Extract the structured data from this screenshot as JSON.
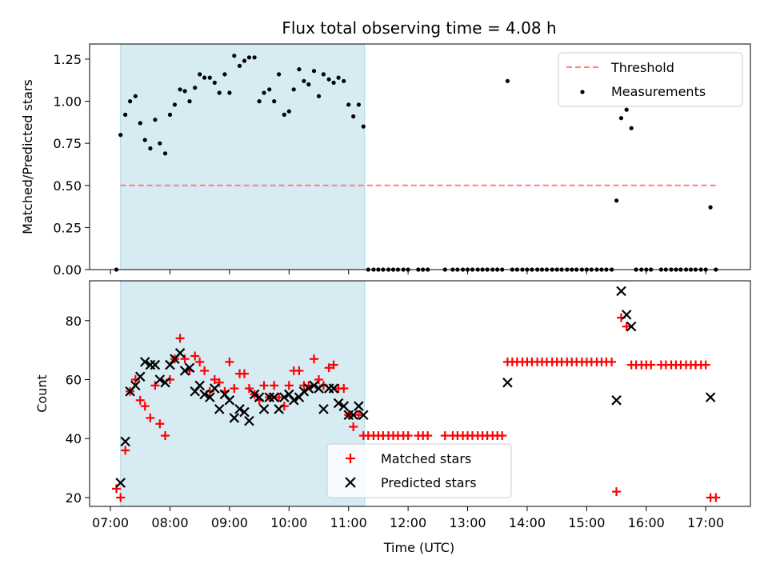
{
  "title": "Flux total observing time = 4.08 h",
  "xlabel": "Time (UTC)",
  "colors": {
    "threshold": "#ff7f7f",
    "measurement": "#000000",
    "matched": "#ff0000",
    "predicted": "#000000",
    "shade": "#add8e6"
  },
  "chart_data": [
    {
      "type": "scatter",
      "name": "ratio-panel",
      "ylabel": "Matched/Predicted stars",
      "xlim_hours": [
        6.65,
        17.75
      ],
      "ylim": [
        0,
        1.34
      ],
      "yticks": [
        0.0,
        0.25,
        0.5,
        0.75,
        1.0,
        1.25
      ],
      "ytick_labels": [
        "0.00",
        "0.25",
        "0.50",
        "0.75",
        "1.00",
        "1.25"
      ],
      "shaded_span_hours": [
        7.17,
        11.27
      ],
      "threshold": {
        "value": 0.5,
        "x_from": 7.17,
        "x_to": 17.2,
        "label": "Threshold"
      },
      "series": [
        {
          "name": "Measurements",
          "marker": "dot",
          "x": [
            7.1,
            7.17,
            7.25,
            7.33,
            7.42,
            7.5,
            7.58,
            7.67,
            7.75,
            7.83,
            7.92,
            8.0,
            8.08,
            8.17,
            8.25,
            8.33,
            8.42,
            8.5,
            8.58,
            8.67,
            8.75,
            8.83,
            8.92,
            9.0,
            9.08,
            9.17,
            9.25,
            9.33,
            9.42,
            9.5,
            9.58,
            9.67,
            9.75,
            9.83,
            9.92,
            10.0,
            10.08,
            10.17,
            10.25,
            10.33,
            10.42,
            10.5,
            10.58,
            10.67,
            10.75,
            10.83,
            10.92,
            11.0,
            11.08,
            11.17,
            11.25,
            11.33,
            11.42,
            11.5,
            11.58,
            11.67,
            11.75,
            11.83,
            11.92,
            12.0,
            12.17,
            12.25,
            12.33,
            12.62,
            12.75,
            12.83,
            12.92,
            13.0,
            13.08,
            13.17,
            13.25,
            13.33,
            13.42,
            13.5,
            13.58,
            13.67,
            13.75,
            13.83,
            13.92,
            14.0,
            14.08,
            14.17,
            14.25,
            14.33,
            14.42,
            14.5,
            14.58,
            14.67,
            14.75,
            14.83,
            14.92,
            15.0,
            15.08,
            15.17,
            15.25,
            15.33,
            15.42,
            15.5,
            15.58,
            15.67,
            15.75,
            15.83,
            15.92,
            16.0,
            16.08,
            16.25,
            16.33,
            16.42,
            16.5,
            16.58,
            16.67,
            16.75,
            16.83,
            16.92,
            17.0,
            17.08,
            17.17
          ],
          "y": [
            0.0,
            0.8,
            0.92,
            1.0,
            1.03,
            0.87,
            0.77,
            0.72,
            0.89,
            0.75,
            0.69,
            0.92,
            0.98,
            1.07,
            1.06,
            1.0,
            1.08,
            1.16,
            1.14,
            1.14,
            1.11,
            1.05,
            1.16,
            1.05,
            1.27,
            1.21,
            1.24,
            1.26,
            1.26,
            1.0,
            1.05,
            1.07,
            1.0,
            1.16,
            0.92,
            0.94,
            1.07,
            1.19,
            1.12,
            1.1,
            1.18,
            1.03,
            1.16,
            1.13,
            1.11,
            1.14,
            1.12,
            0.98,
            0.91,
            0.98,
            0.85,
            0.0,
            0.0,
            0.0,
            0.0,
            0.0,
            0.0,
            0.0,
            0.0,
            0.0,
            0.0,
            0.0,
            0.0,
            0.0,
            0.0,
            0.0,
            0.0,
            0.0,
            0.0,
            0.0,
            0.0,
            0.0,
            0.0,
            0.0,
            0.0,
            1.12,
            0.0,
            0.0,
            0.0,
            0.0,
            0.0,
            0.0,
            0.0,
            0.0,
            0.0,
            0.0,
            0.0,
            0.0,
            0.0,
            0.0,
            0.0,
            0.0,
            0.0,
            0.0,
            0.0,
            0.0,
            0.0,
            0.41,
            0.9,
            0.95,
            0.84,
            0.0,
            0.0,
            0.0,
            0.0,
            0.0,
            0.0,
            0.0,
            0.0,
            0.0,
            0.0,
            0.0,
            0.0,
            0.0,
            0.0,
            0.37,
            0.0
          ]
        }
      ],
      "legend": [
        "Threshold",
        "Measurements"
      ]
    },
    {
      "type": "scatter",
      "name": "count-panel",
      "ylabel": "Count",
      "xlabel": "Time (UTC)",
      "xlim_hours": [
        6.65,
        17.75
      ],
      "ylim": [
        17,
        93.5
      ],
      "yticks": [
        20,
        40,
        60,
        80
      ],
      "ytick_labels": [
        "20",
        "40",
        "60",
        "80"
      ],
      "xticks_hours": [
        7,
        8,
        9,
        10,
        11,
        12,
        13,
        14,
        15,
        16,
        17
      ],
      "xtick_labels": [
        "07:00",
        "08:00",
        "09:00",
        "10:00",
        "11:00",
        "12:00",
        "13:00",
        "14:00",
        "15:00",
        "16:00",
        "17:00"
      ],
      "shaded_span_hours": [
        7.17,
        11.27
      ],
      "series": [
        {
          "name": "Matched stars",
          "marker": "plus",
          "x": [
            7.1,
            7.17,
            7.25,
            7.33,
            7.42,
            7.5,
            7.58,
            7.67,
            7.75,
            7.83,
            7.92,
            8.0,
            8.08,
            8.17,
            8.25,
            8.33,
            8.42,
            8.5,
            8.58,
            8.67,
            8.75,
            8.83,
            8.92,
            9.0,
            9.08,
            9.17,
            9.25,
            9.33,
            9.42,
            9.5,
            9.58,
            9.67,
            9.75,
            9.83,
            9.92,
            10.0,
            10.08,
            10.17,
            10.25,
            10.33,
            10.42,
            10.5,
            10.58,
            10.67,
            10.75,
            10.83,
            10.92,
            11.0,
            11.08,
            11.17,
            11.25,
            11.33,
            11.42,
            11.5,
            11.58,
            11.67,
            11.75,
            11.83,
            11.92,
            12.0,
            12.17,
            12.25,
            12.33,
            12.62,
            12.75,
            12.83,
            12.92,
            13.0,
            13.08,
            13.17,
            13.25,
            13.33,
            13.42,
            13.5,
            13.58,
            13.67,
            13.75,
            13.83,
            13.92,
            14.0,
            14.08,
            14.17,
            14.25,
            14.33,
            14.42,
            14.5,
            14.58,
            14.67,
            14.75,
            14.83,
            14.92,
            15.0,
            15.08,
            15.17,
            15.25,
            15.33,
            15.42,
            15.5,
            15.58,
            15.67,
            15.75,
            15.83,
            15.92,
            16.0,
            16.08,
            16.25,
            16.33,
            16.42,
            16.5,
            16.58,
            16.67,
            16.75,
            16.83,
            16.92,
            17.0,
            17.08,
            17.17
          ],
          "y": [
            23,
            20,
            36,
            56,
            60,
            53,
            51,
            47,
            58,
            45,
            41,
            60,
            67,
            74,
            67,
            63,
            68,
            66,
            63,
            56,
            60,
            59,
            56,
            66,
            57,
            62,
            62,
            57,
            55,
            53,
            58,
            54,
            58,
            54,
            51,
            58,
            63,
            63,
            58,
            58,
            67,
            60,
            58,
            64,
            65,
            57,
            57,
            48,
            44,
            48,
            41,
            41,
            41,
            41,
            41,
            41,
            41,
            41,
            41,
            41,
            41,
            41,
            41,
            41,
            41,
            41,
            41,
            41,
            41,
            41,
            41,
            41,
            41,
            41,
            41,
            66,
            66,
            66,
            66,
            66,
            66,
            66,
            66,
            66,
            66,
            66,
            66,
            66,
            66,
            66,
            66,
            66,
            66,
            66,
            66,
            66,
            66,
            22,
            81,
            78,
            65,
            65,
            65,
            65,
            65,
            65,
            65,
            65,
            65,
            65,
            65,
            65,
            65,
            65,
            65,
            20,
            20
          ]
        },
        {
          "name": "Predicted stars",
          "marker": "x",
          "x": [
            7.17,
            7.25,
            7.33,
            7.42,
            7.5,
            7.58,
            7.67,
            7.75,
            7.83,
            7.92,
            8.0,
            8.08,
            8.17,
            8.25,
            8.33,
            8.42,
            8.5,
            8.58,
            8.67,
            8.75,
            8.83,
            8.92,
            9.0,
            9.08,
            9.17,
            9.25,
            9.33,
            9.42,
            9.5,
            9.58,
            9.67,
            9.75,
            9.83,
            9.92,
            10.0,
            10.08,
            10.17,
            10.25,
            10.33,
            10.42,
            10.5,
            10.58,
            10.67,
            10.75,
            10.83,
            10.92,
            11.0,
            11.08,
            11.17,
            11.25,
            13.67,
            15.5,
            15.58,
            15.67,
            15.75,
            17.08
          ],
          "y": [
            25,
            39,
            56,
            58,
            61,
            66,
            65,
            65,
            60,
            59,
            65,
            67,
            69,
            63,
            64,
            56,
            58,
            55,
            54,
            57,
            50,
            55,
            53,
            47,
            50,
            49,
            46,
            55,
            54,
            50,
            54,
            54,
            50,
            54,
            55,
            53,
            54,
            56,
            57,
            58,
            57,
            50,
            57,
            57,
            52,
            51,
            48,
            48,
            51,
            48,
            59,
            53,
            90,
            82,
            78,
            54
          ]
        }
      ],
      "legend": [
        "Matched stars",
        "Predicted stars"
      ]
    }
  ]
}
